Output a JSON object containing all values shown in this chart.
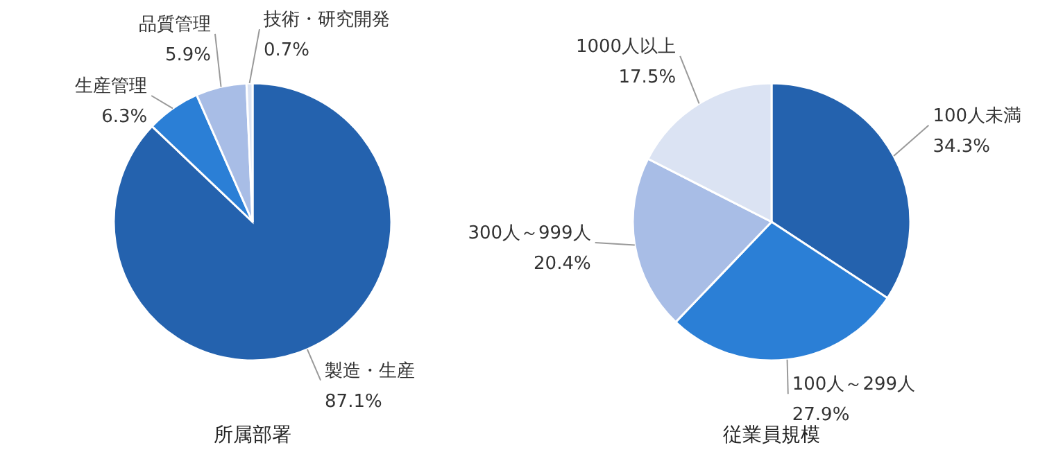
{
  "chart_data": [
    {
      "type": "pie",
      "title": "所属部署",
      "categories": [
        "製造・生産",
        "生産管理",
        "品質管理",
        "技術・研究開発"
      ],
      "values": [
        87.1,
        6.3,
        5.9,
        0.7
      ],
      "colors": [
        "#2462ae",
        "#2b7fd6",
        "#a8bde6",
        "#dbe3f3"
      ],
      "value_labels": [
        "87.1%",
        "6.3%",
        "5.9%",
        "0.7%"
      ]
    },
    {
      "type": "pie",
      "title": "従業員規模",
      "categories": [
        "100人未満",
        "100人～299人",
        "300人～999人",
        "1000人以上"
      ],
      "values": [
        34.3,
        27.9,
        20.4,
        17.5
      ],
      "colors": [
        "#2462ae",
        "#2b7fd6",
        "#a8bde6",
        "#dbe3f3"
      ],
      "value_labels": [
        "34.3%",
        "27.9%",
        "20.4%",
        "17.5%"
      ]
    }
  ]
}
